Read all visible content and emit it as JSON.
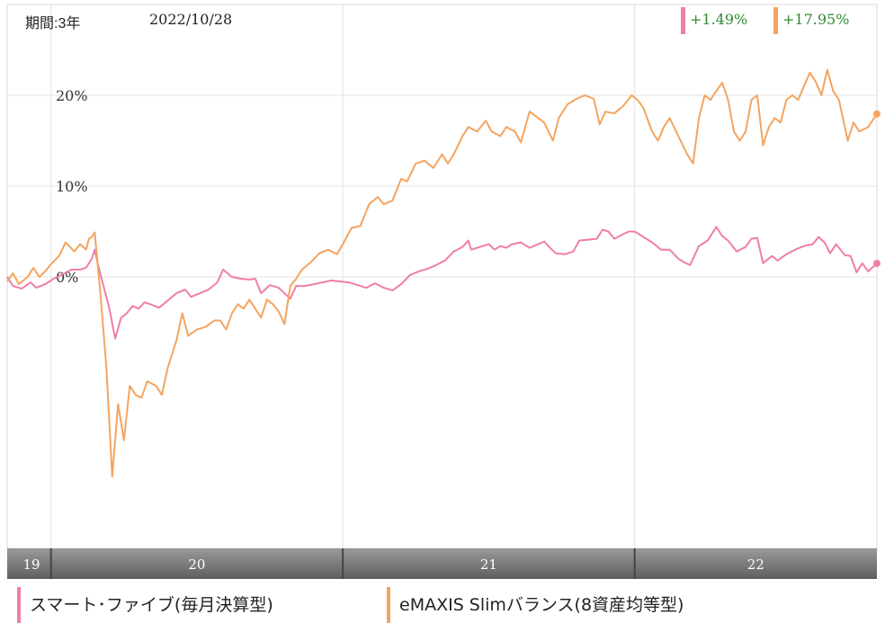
{
  "header": {
    "period_label": "期間:3年",
    "date_label": "2022/10/28"
  },
  "returns": [
    {
      "text": "+1.49%",
      "color": "#ef7fa6"
    },
    {
      "text": "+17.95%",
      "color": "#f4a460"
    }
  ],
  "chart_data": {
    "type": "line",
    "y_ticks": [
      "20%",
      "10%",
      "0%"
    ],
    "y_tick_values": [
      20,
      10,
      0
    ],
    "ylim": [
      -30,
      30
    ],
    "x_range": [
      2019.85,
      2022.83
    ],
    "x_ticks": [
      {
        "label": "19",
        "x": 2019.85
      },
      {
        "label": "20",
        "x": 2020.0
      },
      {
        "label": "21",
        "x": 2021.0
      },
      {
        "label": "22",
        "x": 2022.0
      }
    ],
    "series": [
      {
        "name": "スマート･ファイブ(毎月決算型)",
        "color": "#ef7fa6",
        "points": [
          [
            2019.85,
            0.0
          ],
          [
            2019.87,
            -1.0
          ],
          [
            2019.9,
            -1.3
          ],
          [
            2019.93,
            -0.6
          ],
          [
            2019.95,
            -1.2
          ],
          [
            2019.98,
            -0.8
          ],
          [
            2020.01,
            -0.2
          ],
          [
            2020.04,
            0.3
          ],
          [
            2020.07,
            0.8
          ],
          [
            2020.1,
            0.8
          ],
          [
            2020.12,
            1.0
          ],
          [
            2020.14,
            2.0
          ],
          [
            2020.15,
            3.0
          ],
          [
            2020.16,
            1.5
          ],
          [
            2020.18,
            -1.0
          ],
          [
            2020.2,
            -3.5
          ],
          [
            2020.22,
            -6.8
          ],
          [
            2020.24,
            -4.5
          ],
          [
            2020.26,
            -4.0
          ],
          [
            2020.28,
            -3.2
          ],
          [
            2020.3,
            -3.5
          ],
          [
            2020.32,
            -2.8
          ],
          [
            2020.34,
            -3.0
          ],
          [
            2020.37,
            -3.4
          ],
          [
            2020.4,
            -2.6
          ],
          [
            2020.43,
            -1.8
          ],
          [
            2020.46,
            -1.4
          ],
          [
            2020.48,
            -2.2
          ],
          [
            2020.51,
            -1.8
          ],
          [
            2020.54,
            -1.4
          ],
          [
            2020.57,
            -0.6
          ],
          [
            2020.59,
            0.8
          ],
          [
            2020.62,
            0.0
          ],
          [
            2020.65,
            -0.2
          ],
          [
            2020.68,
            -0.3
          ],
          [
            2020.7,
            -0.2
          ],
          [
            2020.72,
            -1.8
          ],
          [
            2020.75,
            -0.9
          ],
          [
            2020.78,
            -1.2
          ],
          [
            2020.8,
            -1.8
          ],
          [
            2020.82,
            -2.4
          ],
          [
            2020.84,
            -1.0
          ],
          [
            2020.87,
            -1.0
          ],
          [
            2020.9,
            -0.8
          ],
          [
            2020.93,
            -0.6
          ],
          [
            2020.96,
            -0.4
          ],
          [
            2020.99,
            -0.5
          ],
          [
            2021.02,
            -0.6
          ],
          [
            2021.05,
            -0.9
          ],
          [
            2021.08,
            -1.2
          ],
          [
            2021.11,
            -0.7
          ],
          [
            2021.14,
            -1.2
          ],
          [
            2021.17,
            -1.5
          ],
          [
            2021.2,
            -0.8
          ],
          [
            2021.23,
            0.2
          ],
          [
            2021.26,
            0.6
          ],
          [
            2021.29,
            0.9
          ],
          [
            2021.32,
            1.3
          ],
          [
            2021.35,
            1.8
          ],
          [
            2021.38,
            2.8
          ],
          [
            2021.41,
            3.3
          ],
          [
            2021.43,
            4.0
          ],
          [
            2021.44,
            3.0
          ],
          [
            2021.47,
            3.3
          ],
          [
            2021.5,
            3.6
          ],
          [
            2021.52,
            3.0
          ],
          [
            2021.54,
            3.4
          ],
          [
            2021.56,
            3.2
          ],
          [
            2021.58,
            3.6
          ],
          [
            2021.61,
            3.8
          ],
          [
            2021.64,
            3.2
          ],
          [
            2021.67,
            3.6
          ],
          [
            2021.69,
            3.9
          ],
          [
            2021.71,
            3.2
          ],
          [
            2021.73,
            2.6
          ],
          [
            2021.76,
            2.5
          ],
          [
            2021.79,
            2.8
          ],
          [
            2021.81,
            4.0
          ],
          [
            2021.84,
            4.1
          ],
          [
            2021.87,
            4.2
          ],
          [
            2021.89,
            5.2
          ],
          [
            2021.91,
            5.0
          ],
          [
            2021.93,
            4.2
          ],
          [
            2021.96,
            4.7
          ],
          [
            2021.98,
            5.0
          ],
          [
            2022.0,
            5.0
          ],
          [
            2022.03,
            4.4
          ],
          [
            2022.06,
            3.8
          ],
          [
            2022.09,
            3.0
          ],
          [
            2022.12,
            3.0
          ],
          [
            2022.15,
            2.0
          ],
          [
            2022.17,
            1.6
          ],
          [
            2022.19,
            1.3
          ],
          [
            2022.22,
            3.4
          ],
          [
            2022.25,
            4.0
          ],
          [
            2022.28,
            5.5
          ],
          [
            2022.3,
            4.5
          ],
          [
            2022.32,
            4.0
          ],
          [
            2022.35,
            2.8
          ],
          [
            2022.38,
            3.3
          ],
          [
            2022.4,
            4.2
          ],
          [
            2022.42,
            4.3
          ],
          [
            2022.44,
            1.5
          ],
          [
            2022.47,
            2.3
          ],
          [
            2022.49,
            1.8
          ],
          [
            2022.52,
            2.5
          ],
          [
            2022.55,
            3.0
          ],
          [
            2022.58,
            3.4
          ],
          [
            2022.61,
            3.6
          ],
          [
            2022.63,
            4.4
          ],
          [
            2022.65,
            3.8
          ],
          [
            2022.67,
            2.6
          ],
          [
            2022.69,
            3.6
          ],
          [
            2022.72,
            2.4
          ],
          [
            2022.74,
            2.3
          ],
          [
            2022.76,
            0.5
          ],
          [
            2022.78,
            1.5
          ],
          [
            2022.8,
            0.6
          ],
          [
            2022.83,
            1.49
          ]
        ]
      },
      {
        "name": "eMAXIS Slimバランス(8資産均等型)",
        "color": "#f4a460",
        "points": [
          [
            2019.85,
            -0.5
          ],
          [
            2019.87,
            0.4
          ],
          [
            2019.89,
            -0.8
          ],
          [
            2019.92,
            0.0
          ],
          [
            2019.94,
            1.0
          ],
          [
            2019.96,
            0.0
          ],
          [
            2019.98,
            0.6
          ],
          [
            2020.0,
            1.4
          ],
          [
            2020.03,
            2.4
          ],
          [
            2020.05,
            3.8
          ],
          [
            2020.08,
            2.8
          ],
          [
            2020.1,
            3.6
          ],
          [
            2020.12,
            3.0
          ],
          [
            2020.13,
            4.2
          ],
          [
            2020.14,
            4.4
          ],
          [
            2020.15,
            4.9
          ],
          [
            2020.17,
            -2.0
          ],
          [
            2020.19,
            -10.0
          ],
          [
            2020.21,
            -22.0
          ],
          [
            2020.23,
            -14.0
          ],
          [
            2020.25,
            -18.0
          ],
          [
            2020.27,
            -12.0
          ],
          [
            2020.29,
            -13.0
          ],
          [
            2020.31,
            -13.3
          ],
          [
            2020.33,
            -11.5
          ],
          [
            2020.36,
            -12.0
          ],
          [
            2020.38,
            -13.0
          ],
          [
            2020.4,
            -10.0
          ],
          [
            2020.43,
            -7.0
          ],
          [
            2020.45,
            -4.0
          ],
          [
            2020.47,
            -6.5
          ],
          [
            2020.5,
            -5.8
          ],
          [
            2020.53,
            -5.5
          ],
          [
            2020.56,
            -4.8
          ],
          [
            2020.58,
            -4.8
          ],
          [
            2020.6,
            -5.8
          ],
          [
            2020.62,
            -4.0
          ],
          [
            2020.64,
            -3.0
          ],
          [
            2020.66,
            -3.5
          ],
          [
            2020.68,
            -2.5
          ],
          [
            2020.7,
            -3.5
          ],
          [
            2020.72,
            -4.5
          ],
          [
            2020.74,
            -2.5
          ],
          [
            2020.76,
            -3.0
          ],
          [
            2020.78,
            -3.8
          ],
          [
            2020.8,
            -5.2
          ],
          [
            2020.82,
            -1.0
          ],
          [
            2020.84,
            -0.2
          ],
          [
            2020.86,
            0.8
          ],
          [
            2020.89,
            1.6
          ],
          [
            2020.92,
            2.6
          ],
          [
            2020.95,
            3.0
          ],
          [
            2020.98,
            2.5
          ],
          [
            2021.0,
            3.6
          ],
          [
            2021.03,
            5.4
          ],
          [
            2021.06,
            5.6
          ],
          [
            2021.09,
            8.0
          ],
          [
            2021.12,
            8.8
          ],
          [
            2021.14,
            8.0
          ],
          [
            2021.17,
            8.4
          ],
          [
            2021.2,
            10.8
          ],
          [
            2021.22,
            10.5
          ],
          [
            2021.25,
            12.5
          ],
          [
            2021.28,
            12.8
          ],
          [
            2021.31,
            12.0
          ],
          [
            2021.34,
            13.5
          ],
          [
            2021.36,
            12.5
          ],
          [
            2021.38,
            13.5
          ],
          [
            2021.41,
            15.5
          ],
          [
            2021.43,
            16.5
          ],
          [
            2021.46,
            16.0
          ],
          [
            2021.49,
            17.2
          ],
          [
            2021.51,
            16.0
          ],
          [
            2021.54,
            15.5
          ],
          [
            2021.56,
            16.5
          ],
          [
            2021.59,
            16.0
          ],
          [
            2021.61,
            14.8
          ],
          [
            2021.64,
            18.2
          ],
          [
            2021.67,
            17.5
          ],
          [
            2021.69,
            17.0
          ],
          [
            2021.72,
            15.0
          ],
          [
            2021.74,
            17.5
          ],
          [
            2021.77,
            19.0
          ],
          [
            2021.8,
            19.6
          ],
          [
            2021.83,
            20.0
          ],
          [
            2021.86,
            19.6
          ],
          [
            2021.88,
            16.8
          ],
          [
            2021.9,
            18.2
          ],
          [
            2021.93,
            18.0
          ],
          [
            2021.96,
            18.8
          ],
          [
            2021.99,
            20.0
          ],
          [
            2022.01,
            19.5
          ],
          [
            2022.03,
            18.6
          ],
          [
            2022.06,
            16.0
          ],
          [
            2022.08,
            15.0
          ],
          [
            2022.1,
            16.5
          ],
          [
            2022.12,
            17.5
          ],
          [
            2022.15,
            15.5
          ],
          [
            2022.18,
            13.5
          ],
          [
            2022.2,
            12.5
          ],
          [
            2022.22,
            17.5
          ],
          [
            2022.24,
            20.0
          ],
          [
            2022.26,
            19.5
          ],
          [
            2022.28,
            20.5
          ],
          [
            2022.3,
            21.4
          ],
          [
            2022.32,
            19.5
          ],
          [
            2022.34,
            16.0
          ],
          [
            2022.36,
            15.0
          ],
          [
            2022.38,
            16.0
          ],
          [
            2022.4,
            19.5
          ],
          [
            2022.42,
            20.0
          ],
          [
            2022.44,
            14.5
          ],
          [
            2022.46,
            16.5
          ],
          [
            2022.48,
            17.5
          ],
          [
            2022.5,
            17.0
          ],
          [
            2022.52,
            19.5
          ],
          [
            2022.54,
            20.0
          ],
          [
            2022.56,
            19.5
          ],
          [
            2022.58,
            21.0
          ],
          [
            2022.6,
            22.5
          ],
          [
            2022.62,
            21.5
          ],
          [
            2022.64,
            20.0
          ],
          [
            2022.66,
            22.8
          ],
          [
            2022.68,
            20.5
          ],
          [
            2022.7,
            19.5
          ],
          [
            2022.73,
            15.0
          ],
          [
            2022.75,
            17.0
          ],
          [
            2022.77,
            16.0
          ],
          [
            2022.8,
            16.5
          ],
          [
            2022.83,
            17.95
          ]
        ]
      }
    ]
  },
  "legend": [
    {
      "label": "スマート･ファイブ(毎月決算型)",
      "color": "#ef7fa6"
    },
    {
      "label": "eMAXIS Slimバランス(8資産均等型)",
      "color": "#f4a460"
    }
  ]
}
